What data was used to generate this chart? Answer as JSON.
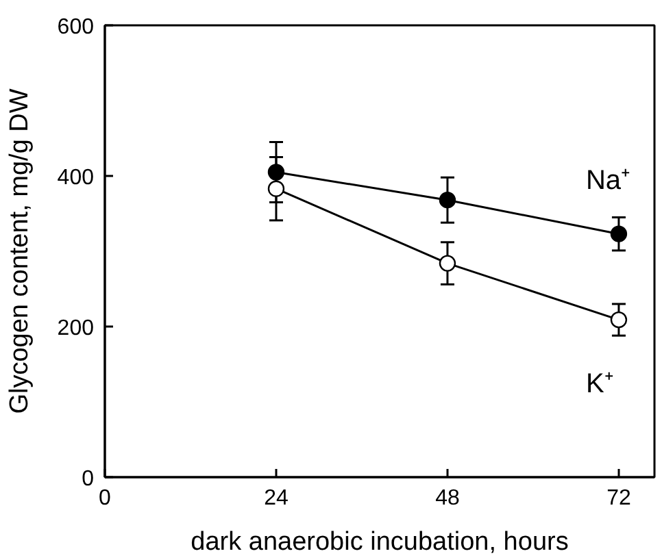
{
  "chart_data": {
    "type": "line",
    "xlabel": "dark anaerobic incubation, hours",
    "ylabel": "Glycogen content, mg/g DW",
    "x": [
      24,
      48,
      72
    ],
    "series": [
      {
        "name": "Na⁺",
        "color": "#000000",
        "values": [
          405,
          368,
          323
        ],
        "errors": [
          40,
          30,
          22
        ]
      },
      {
        "name": "K⁺",
        "color": "#000000",
        "values": [
          383,
          284,
          209
        ],
        "errors": [
          42,
          28,
          21
        ]
      }
    ],
    "xlim": [
      0,
      77
    ],
    "ylim": [
      0,
      600
    ],
    "xticks": [
      0,
      24,
      48,
      72
    ],
    "yticks": [
      0,
      200,
      400,
      600
    ],
    "grid": false,
    "marker": "circle",
    "line_style": "solid"
  }
}
